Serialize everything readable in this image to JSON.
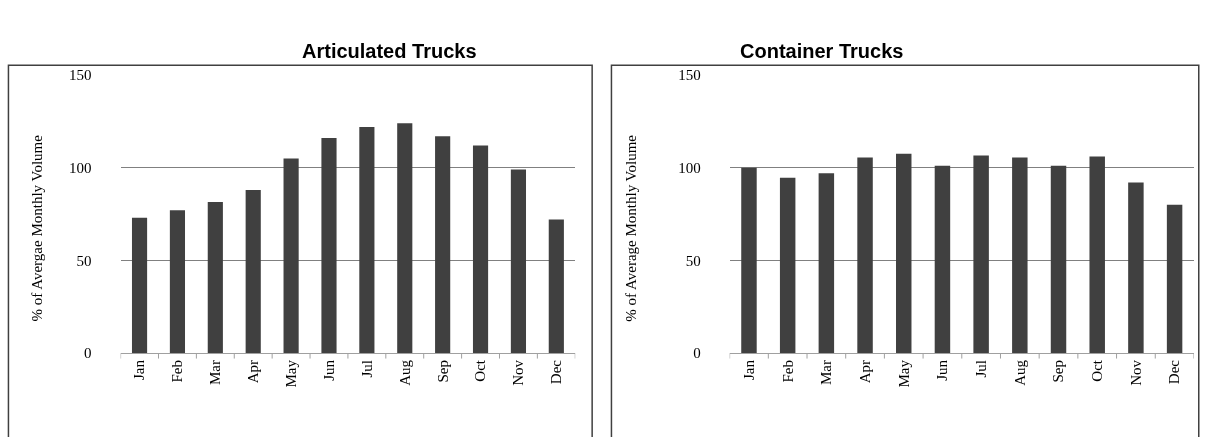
{
  "chart_data": [
    {
      "type": "bar",
      "title": "Articulated Trucks",
      "ylabel": "% of Avergae Monthly Volume",
      "categories": [
        "Jan",
        "Feb",
        "Mar",
        "Apr",
        "May",
        "Jun",
        "Jul",
        "Aug",
        "Sep",
        "Oct",
        "Nov",
        "Dec"
      ],
      "values": [
        73,
        77,
        81.5,
        88,
        105,
        116,
        122,
        124,
        117,
        112,
        99,
        72
      ],
      "color": "#404040",
      "ylim": [
        0,
        150
      ],
      "yticks": [
        0,
        50,
        100,
        150
      ],
      "grid": "y"
    },
    {
      "type": "bar",
      "title": "Container Trucks",
      "ylabel": "% of Average Monthly Volume",
      "categories": [
        "Jan",
        "Feb",
        "Mar",
        "Apr",
        "May",
        "Jun",
        "Jul",
        "Aug",
        "Sep",
        "Oct",
        "Nov",
        "Dec"
      ],
      "values": [
        100,
        94.5,
        97,
        105.5,
        107.5,
        101,
        106.5,
        105.5,
        101,
        106,
        92,
        80
      ],
      "color": "#404040",
      "ylim": [
        0,
        150
      ],
      "yticks": [
        0,
        50,
        100,
        150
      ],
      "grid": "y"
    }
  ]
}
